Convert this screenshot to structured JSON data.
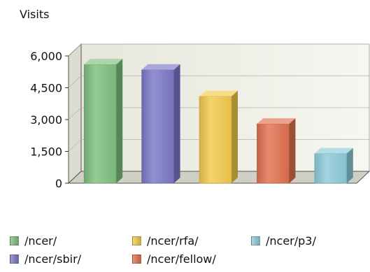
{
  "chart_data": {
    "type": "bar",
    "ylabel": "Visits",
    "ylim": [
      0,
      6000
    ],
    "yticks": [
      "0",
      "1,500",
      "3,000",
      "4,500",
      "6,000"
    ],
    "categories": [
      "/ncer/",
      "/ncer/sbir/",
      "/ncer/rfa/",
      "/ncer/fellow/",
      "/ncer/p3/"
    ],
    "values": [
      5600,
      5350,
      4100,
      2800,
      1400
    ],
    "colors": [
      "#7fbf7f",
      "#7b78c7",
      "#f2c94c",
      "#e0704f",
      "#8ccbd8"
    ],
    "grid": true,
    "legend_position": "bottom",
    "style": "3d"
  }
}
